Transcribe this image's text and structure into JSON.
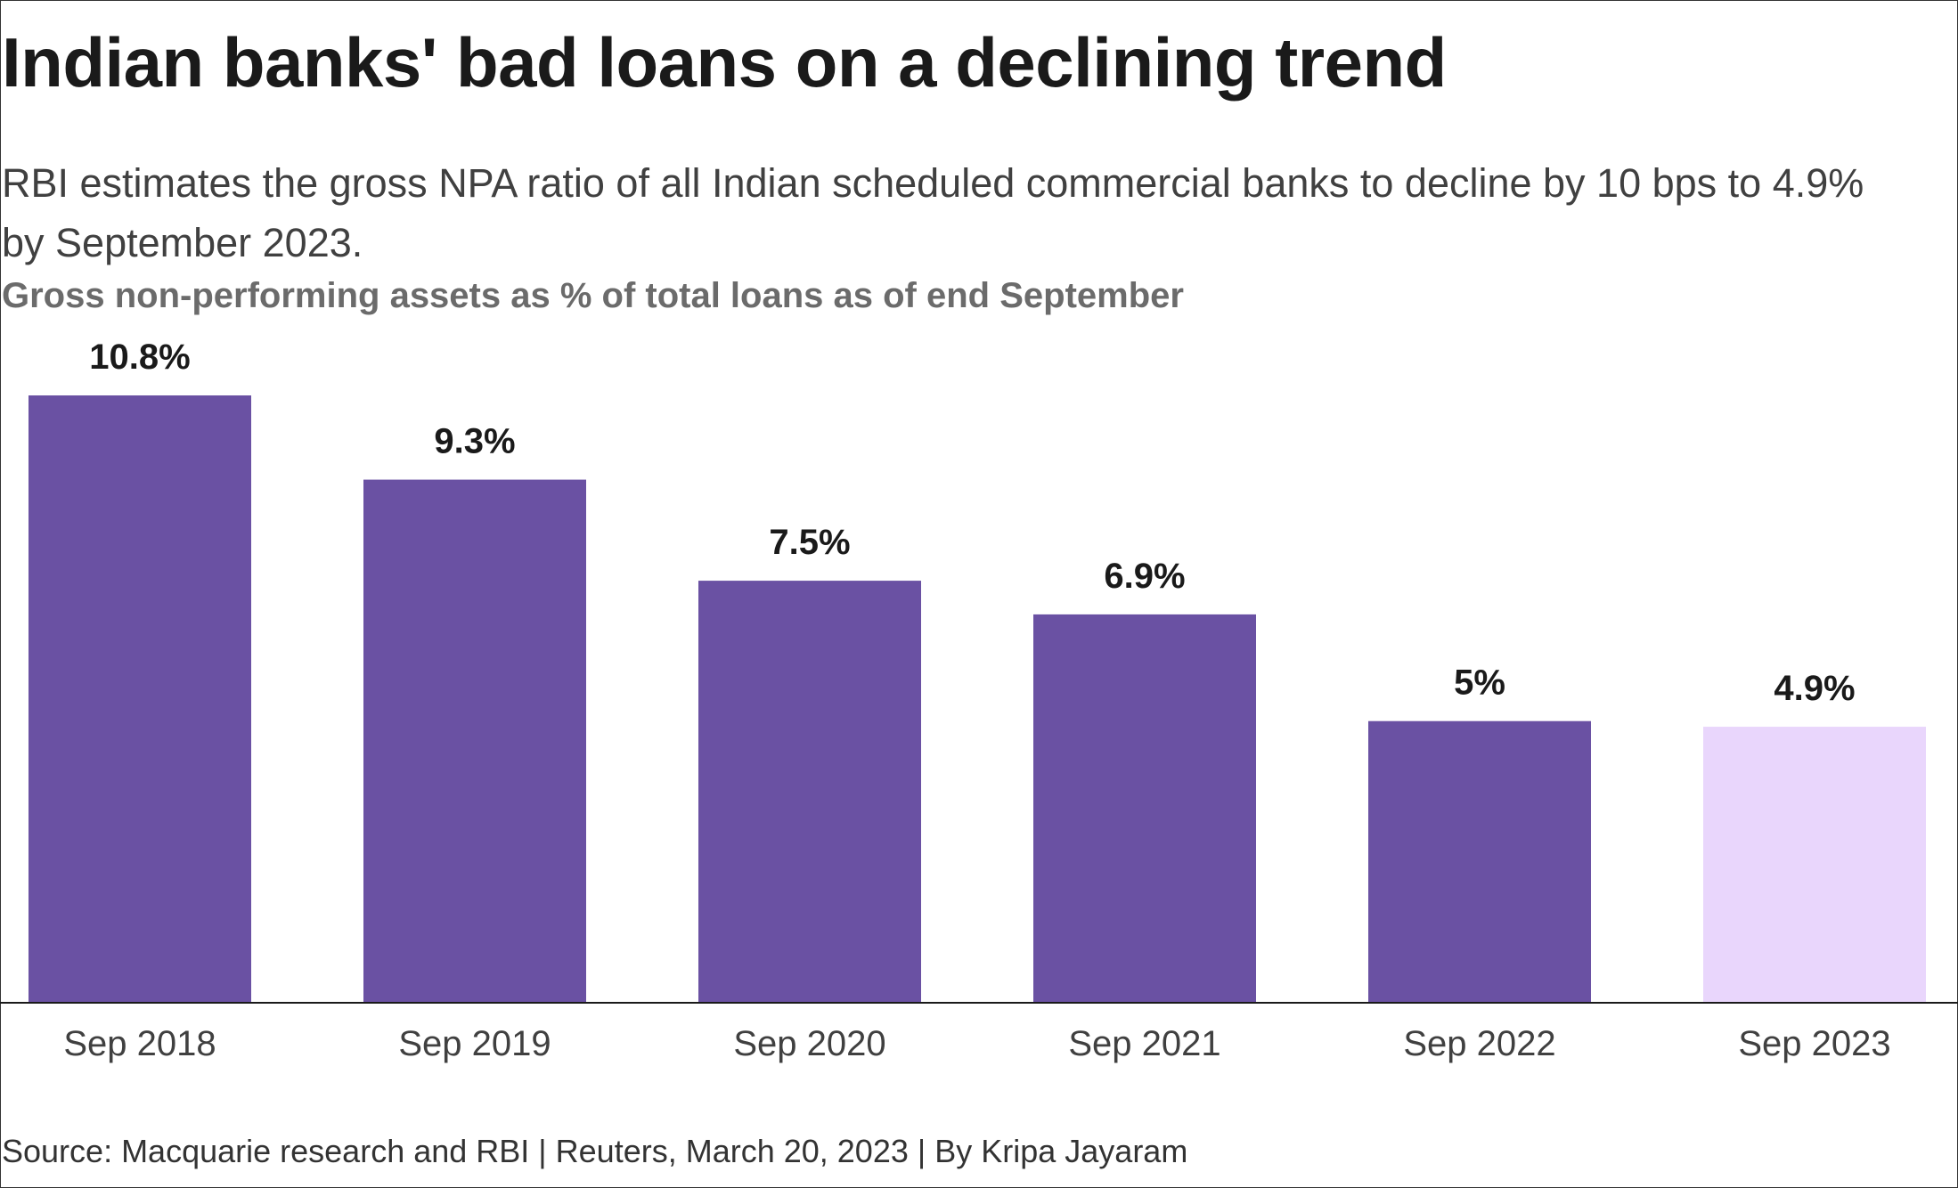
{
  "title": "Indian banks' bad loans on a declining trend",
  "subtitle": "RBI estimates the gross NPA ratio of all Indian scheduled commercial banks to decline by 10 bps to 4.9% by September 2023.",
  "ylabel": "Gross non-performing assets as % of total loans as of end September",
  "source": "Source: Macquarie research and RBI | Reuters, March 20, 2023 | By Kripa Jayaram",
  "colors": {
    "actual": "#6a51a3",
    "estimate": "#e9d6fc",
    "axis": "#1a1a1a"
  },
  "chart_data": {
    "type": "bar",
    "categories": [
      "Sep 2018",
      "Sep 2019",
      "Sep 2020",
      "Sep 2021",
      "Sep 2022",
      "Sep 2023"
    ],
    "values": [
      10.8,
      9.3,
      7.5,
      6.9,
      5,
      4.9
    ],
    "labels": [
      "10.8%",
      "9.3%",
      "7.5%",
      "6.9%",
      "5%",
      "4.9%"
    ],
    "estimate": [
      false,
      false,
      false,
      false,
      false,
      true
    ],
    "ylim": [
      0,
      10.8
    ],
    "grid": false,
    "legend": "none"
  }
}
